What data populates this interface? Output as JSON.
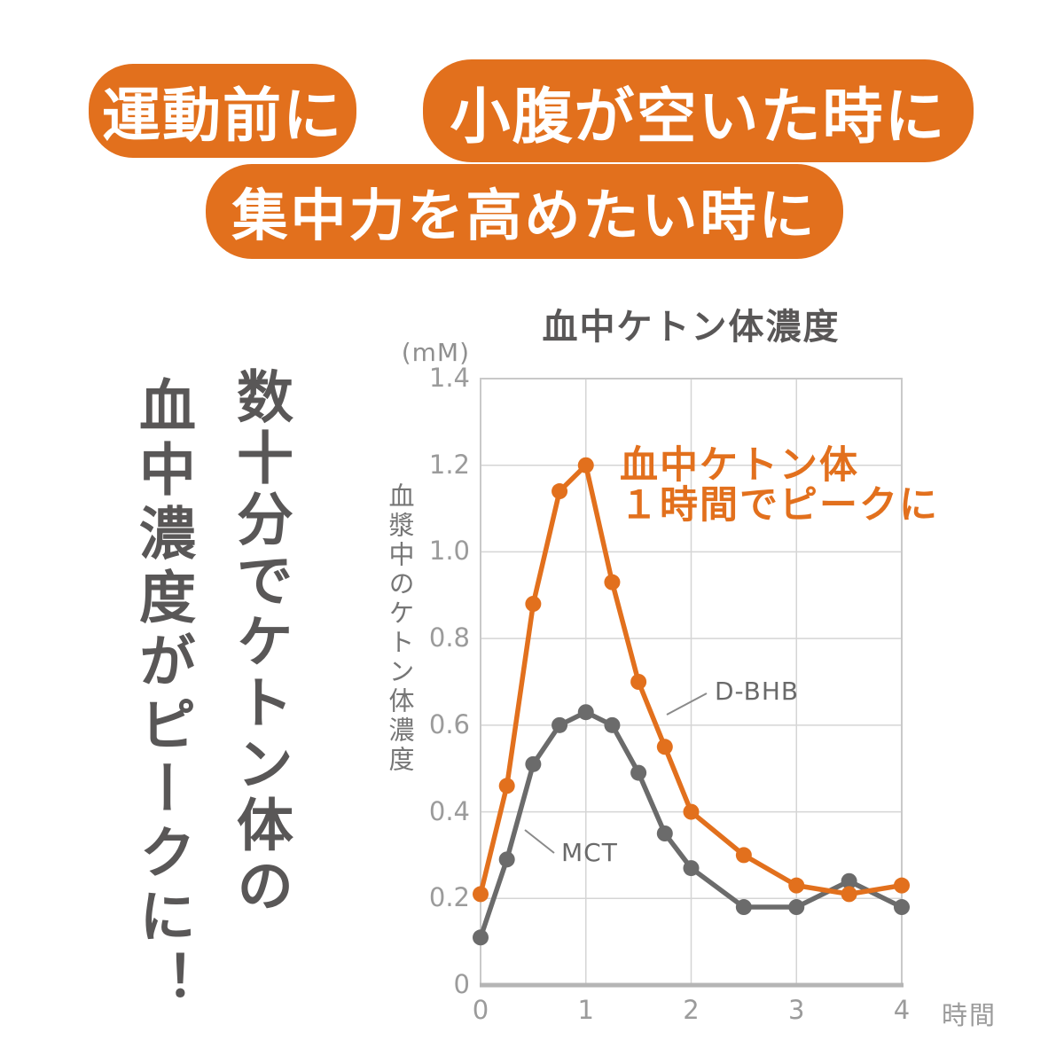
{
  "page": {
    "background": "#ffffff",
    "accent_orange": "#e2701d",
    "text_dark_gray": "#595757",
    "tick_gray": "#9b9b9b",
    "grid_gray": "#d5d5d5",
    "border_gray": "#c9c9c9",
    "axis_gray": "#b5b5b5",
    "leader_gray": "#8a8a8a"
  },
  "badges": [
    {
      "label": "運動前に"
    },
    {
      "label": "小腹が空いた時に"
    },
    {
      "label": "集中力を高めたい時に"
    }
  ],
  "slogan": {
    "line1": "数十分でケトン体の",
    "line2": "血中濃度がピークに！"
  },
  "chart": {
    "title": "血中ケトン体濃度",
    "unit_label": "(mM)",
    "y_axis_label": "血漿中のケトン体濃度",
    "x_axis_label": "時間",
    "annotation_line1": "血中ケトン体",
    "annotation_line2": "１時間でピークに",
    "series_labels": {
      "dbhb": "D-BHB",
      "mct": "MCT"
    },
    "ytick_labels": [
      "0",
      "0.2",
      "0.4",
      "0.6",
      "0.8",
      "1.0",
      "1.2",
      "1.4"
    ],
    "xtick_labels": [
      "0",
      "1",
      "2",
      "3",
      "4"
    ]
  },
  "chart_data": {
    "type": "line",
    "title": "血中ケトン体濃度",
    "xlabel": "時間",
    "ylabel": "血漿中のケトン体濃度",
    "unit": "mM",
    "x": [
      0,
      0.25,
      0.5,
      0.75,
      1,
      1.25,
      1.5,
      1.75,
      2,
      2.5,
      3,
      3.5,
      4
    ],
    "series": [
      {
        "name": "D-BHB",
        "color": "#e2701d",
        "values": [
          0.21,
          0.46,
          0.88,
          1.14,
          1.2,
          0.93,
          0.7,
          0.55,
          0.4,
          0.3,
          0.23,
          0.21,
          0.23
        ]
      },
      {
        "name": "MCT",
        "color": "#6b6b6b",
        "values": [
          0.11,
          0.29,
          0.51,
          0.6,
          0.63,
          0.6,
          0.49,
          0.35,
          0.27,
          0.18,
          0.18,
          0.24,
          0.18
        ]
      }
    ],
    "xlim": [
      0,
      4
    ],
    "ylim": [
      0,
      1.4
    ],
    "xticks": [
      0,
      1,
      2,
      3,
      4
    ],
    "yticks": [
      0,
      0.2,
      0.4,
      0.6,
      0.8,
      1.0,
      1.2,
      1.4
    ],
    "grid": true,
    "legend_position": "inline-callouts",
    "annotation": "血中ケトン体 １時間でピークに"
  }
}
